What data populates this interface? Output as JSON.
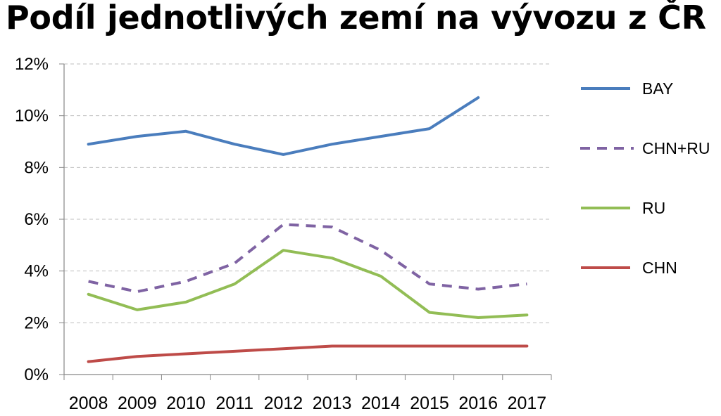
{
  "chart_data": {
    "type": "line",
    "title": "Podíl jednotlivých zemí na vývozu z ČR",
    "categories": [
      "2008",
      "2009",
      "2010",
      "2011",
      "2012",
      "2013",
      "2014",
      "2015",
      "2016",
      "2017"
    ],
    "y_ticks": [
      "0%",
      "2%",
      "4%",
      "6%",
      "8%",
      "10%",
      "12%"
    ],
    "ylim": [
      0,
      12
    ],
    "y_unit": "%",
    "grid": "horizontal dashed",
    "legend_position": "right",
    "series": [
      {
        "name": "BAY",
        "color": "#4a7dbd",
        "style": "solid",
        "values": [
          8.9,
          9.2,
          9.4,
          8.9,
          8.5,
          8.9,
          9.2,
          9.5,
          10.7,
          null
        ]
      },
      {
        "name": "CHN+RU",
        "color": "#7f63a3",
        "style": "dashed",
        "values": [
          3.6,
          3.2,
          3.6,
          4.3,
          5.8,
          5.7,
          4.8,
          3.5,
          3.3,
          3.5
        ]
      },
      {
        "name": "RU",
        "color": "#92bd55",
        "style": "solid",
        "values": [
          3.1,
          2.5,
          2.8,
          3.5,
          4.8,
          4.5,
          3.8,
          2.4,
          2.2,
          2.3
        ]
      },
      {
        "name": "CHN",
        "color": "#be4b48",
        "style": "solid",
        "values": [
          0.5,
          0.7,
          0.8,
          0.9,
          1.0,
          1.1,
          1.1,
          1.1,
          1.1,
          1.1
        ]
      }
    ]
  }
}
